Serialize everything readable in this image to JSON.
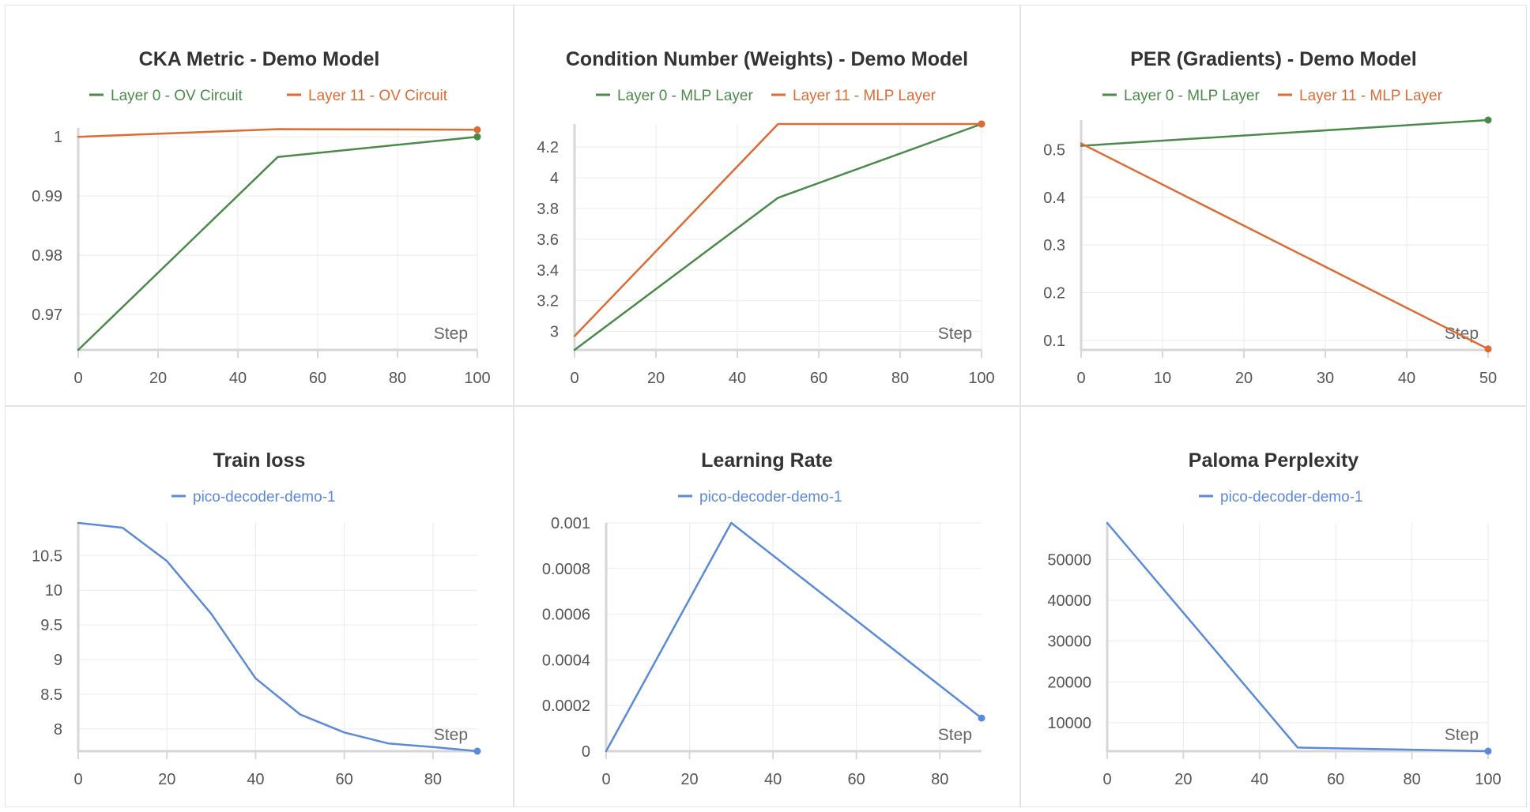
{
  "chart_data": [
    {
      "type": "line",
      "title": "CKA Metric - Demo Model",
      "xlabel": "Step",
      "ylabel": "",
      "grid": true,
      "legend_position": "top-center",
      "xlim": [
        0,
        100
      ],
      "ylim": [
        0.964,
        1.0015
      ],
      "xticks": [
        0,
        20,
        40,
        60,
        80,
        100
      ],
      "yticks": [
        0.97,
        0.98,
        0.99,
        1
      ],
      "series": [
        {
          "name": "Layer 0 - OV Circuit",
          "color": "#4b8a4b",
          "x": [
            0,
            50,
            100
          ],
          "y": [
            0.964,
            0.9966,
            1.0
          ]
        },
        {
          "name": "Layer 11 - OV Circuit",
          "color": "#dd6b35",
          "x": [
            0,
            50,
            100
          ],
          "y": [
            1.0,
            1.0013,
            1.0012
          ]
        }
      ]
    },
    {
      "type": "line",
      "title": "Condition Number (Weights) - Demo Model",
      "xlabel": "Step",
      "ylabel": "",
      "grid": true,
      "legend_position": "top-center",
      "xlim": [
        0,
        100
      ],
      "ylim": [
        2.88,
        4.35
      ],
      "xticks": [
        0,
        20,
        40,
        60,
        80,
        100
      ],
      "yticks": [
        3,
        3.2,
        3.4,
        3.6,
        3.8,
        4,
        4.2
      ],
      "series": [
        {
          "name": "Layer 0 - MLP Layer",
          "color": "#4b8a4b",
          "x": [
            0,
            50,
            100
          ],
          "y": [
            2.88,
            3.87,
            4.35
          ]
        },
        {
          "name": "Layer 11 - MLP Layer",
          "color": "#dd6b35",
          "x": [
            0,
            50,
            100
          ],
          "y": [
            2.97,
            4.35,
            4.35
          ]
        }
      ]
    },
    {
      "type": "line",
      "title": "PER (Gradients) - Demo Model",
      "xlabel": "Step",
      "ylabel": "",
      "grid": true,
      "legend_position": "top-center",
      "xlim": [
        0,
        50
      ],
      "ylim": [
        0.08,
        0.562
      ],
      "xticks": [
        0,
        10,
        20,
        30,
        40,
        50
      ],
      "yticks": [
        0.1,
        0.2,
        0.3,
        0.4,
        0.5
      ],
      "series": [
        {
          "name": "Layer 0 - MLP Layer",
          "color": "#4b8a4b",
          "x": [
            0,
            50
          ],
          "y": [
            0.508,
            0.562
          ]
        },
        {
          "name": "Layer 11 - MLP Layer",
          "color": "#dd6b35",
          "x": [
            0,
            50
          ],
          "y": [
            0.513,
            0.082
          ]
        }
      ]
    },
    {
      "type": "line",
      "title": "Train loss",
      "xlabel": "Step",
      "ylabel": "",
      "grid": true,
      "legend_position": "top-center",
      "xlim": [
        0,
        90
      ],
      "ylim": [
        7.68,
        10.97
      ],
      "xticks": [
        0,
        20,
        40,
        60,
        80
      ],
      "yticks": [
        8,
        8.5,
        9,
        9.5,
        10,
        10.5
      ],
      "series": [
        {
          "name": "pico-decoder-demo-1",
          "color": "#5b8ad8",
          "x": [
            0,
            10,
            20,
            30,
            40,
            50,
            60,
            70,
            80,
            90
          ],
          "y": [
            10.97,
            10.9,
            10.42,
            9.66,
            8.73,
            8.21,
            7.95,
            7.79,
            7.74,
            7.68
          ]
        }
      ]
    },
    {
      "type": "line",
      "title": "Learning Rate",
      "xlabel": "Step",
      "ylabel": "",
      "grid": true,
      "legend_position": "top-center",
      "xlim": [
        0,
        90
      ],
      "ylim": [
        0,
        0.001
      ],
      "xticks": [
        0,
        20,
        40,
        60,
        80
      ],
      "yticks": [
        0,
        0.0002,
        0.0004,
        0.0006,
        0.0008,
        0.001
      ],
      "series": [
        {
          "name": "pico-decoder-demo-1",
          "color": "#5b8ad8",
          "x": [
            0,
            30,
            90
          ],
          "y": [
            0,
            0.001,
            0.000145
          ]
        }
      ]
    },
    {
      "type": "line",
      "title": "Paloma Perplexity",
      "xlabel": "Step",
      "ylabel": "",
      "grid": true,
      "legend_position": "top-center",
      "xlim": [
        0,
        100
      ],
      "ylim": [
        3000,
        59000
      ],
      "xticks": [
        0,
        20,
        40,
        60,
        80,
        100
      ],
      "yticks": [
        10000,
        20000,
        30000,
        40000,
        50000
      ],
      "series": [
        {
          "name": "pico-decoder-demo-1",
          "color": "#5b8ad8",
          "x": [
            0,
            50,
            100
          ],
          "y": [
            59000,
            3900,
            3000
          ]
        }
      ]
    }
  ]
}
